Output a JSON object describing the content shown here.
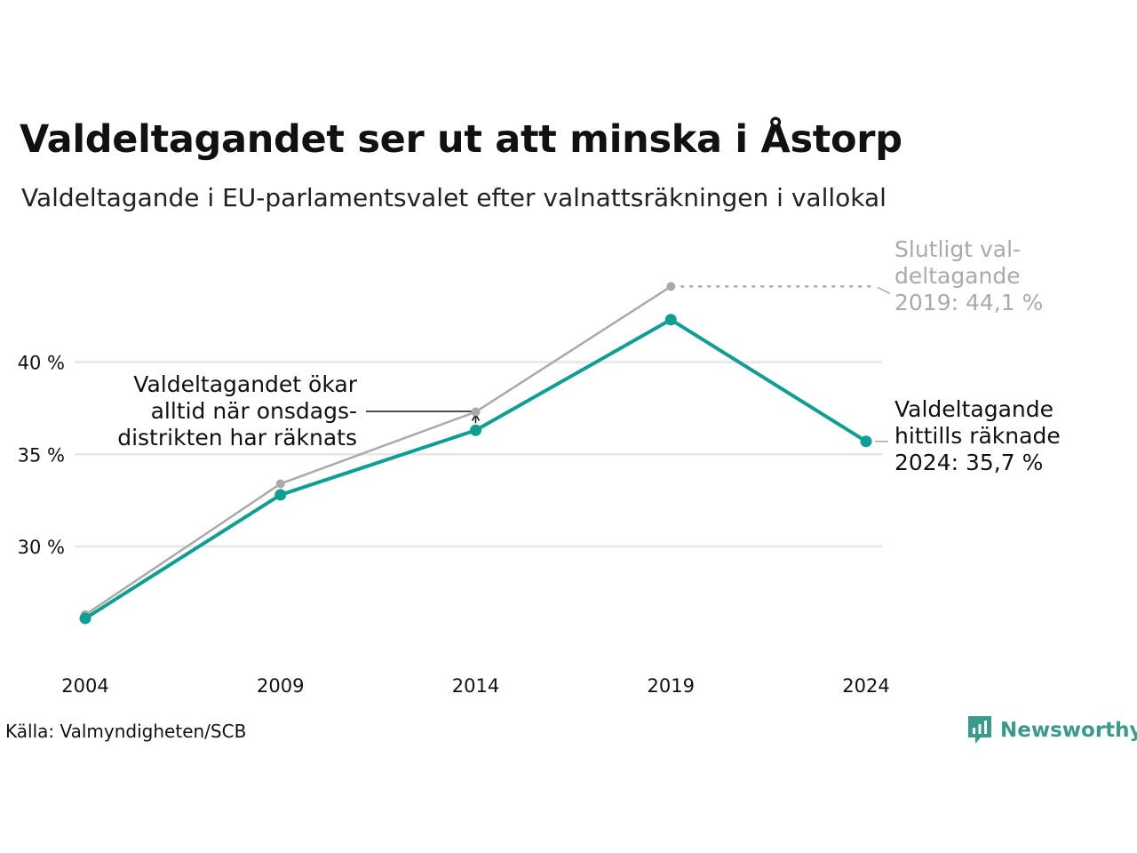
{
  "title": "Valdeltagandet ser ut att minska i Åstorp",
  "subtitle": "Valdeltagande i EU-parlamentsvalet efter valnattsräkningen i vallokal",
  "source": "Källa: Valmyndigheten/SCB",
  "brand": "Newsworthy",
  "colors": {
    "teal": "#0e9e94",
    "gray": "#aaaaaa",
    "grid": "#e6e6e6",
    "brand": "#3a9a8d"
  },
  "chart_data": {
    "type": "line",
    "x": [
      "2004",
      "2009",
      "2014",
      "2019",
      "2024"
    ],
    "series": [
      {
        "key": "final",
        "color": "#aaaaaa",
        "values": [
          26.3,
          33.4,
          37.3,
          44.1,
          null
        ]
      },
      {
        "key": "counted",
        "color": "#0e9e94",
        "values": [
          26.1,
          32.8,
          36.3,
          42.3,
          35.7
        ]
      }
    ],
    "yticks": [
      {
        "value": 30,
        "label": "30 %"
      },
      {
        "value": 35,
        "label": "35 %"
      },
      {
        "value": 40,
        "label": "40 %"
      }
    ],
    "ylim": [
      24.7,
      46.0
    ],
    "grid": true,
    "annotations": {
      "final_2019": [
        "Slutligt val-",
        "deltagande",
        "2019: 44,1 %"
      ],
      "counted_2024": [
        "Valdeltagande",
        "hittills räknade",
        "2024: 35,7 %"
      ],
      "wednesday": [
        "Valdeltagandet ökar",
        "alltid när onsdags-",
        "distrikten har räknats"
      ]
    }
  }
}
